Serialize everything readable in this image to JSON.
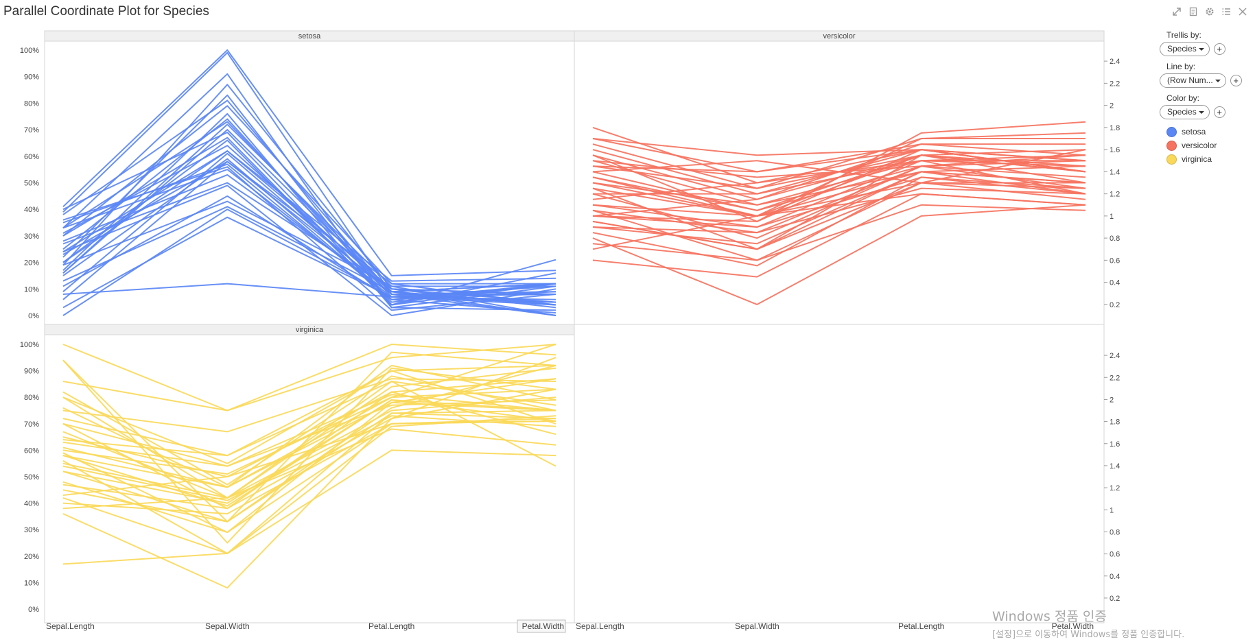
{
  "title": "Parallel Coordinate Plot for Species",
  "toolbar": {
    "icons": [
      "expand-icon",
      "export-icon",
      "settings-icon",
      "list-icon",
      "close-icon"
    ]
  },
  "legend": {
    "trellis_label": "Trellis by:",
    "trellis_value": "Species",
    "line_label": "Line by:",
    "line_value": "(Row Num...",
    "color_label": "Color by:",
    "color_value": "Species",
    "categories": [
      {
        "name": "setosa",
        "color": "#5b87f5"
      },
      {
        "name": "versicolor",
        "color": "#f5735f"
      },
      {
        "name": "virginica",
        "color": "#fad95a"
      }
    ]
  },
  "watermark": {
    "line1": "Windows 정품 인증",
    "line2": "[설정]으로 이동하여 Windows를 정품 인증합니다."
  },
  "chart_data": {
    "type": "line",
    "title": "Parallel Coordinate Plot for Species",
    "axes": [
      "Sepal.Length",
      "Sepal.Width",
      "Petal.Length",
      "Petal.Width"
    ],
    "left_axis": {
      "ticks": [
        "0%",
        "10%",
        "20%",
        "30%",
        "40%",
        "50%",
        "60%",
        "70%",
        "80%",
        "90%",
        "100%"
      ],
      "range": [
        0,
        100
      ]
    },
    "right_axis": {
      "ticks": [
        "0.2",
        "0.4",
        "0.6",
        "0.8",
        "1",
        "1.2",
        "1.4",
        "1.6",
        "1.8",
        "2",
        "2.2",
        "2.4"
      ],
      "range": [
        0.1,
        2.5
      ]
    },
    "panels": [
      {
        "name": "setosa",
        "color": "#5b87f5",
        "lines": [
          [
            8,
            12,
            7,
            8
          ],
          [
            3,
            37,
            7,
            6
          ],
          [
            0,
            40,
            7,
            5
          ],
          [
            13,
            41,
            9,
            4
          ],
          [
            19,
            43,
            11,
            0
          ],
          [
            27,
            50,
            10,
            8
          ],
          [
            35,
            57,
            6,
            1
          ],
          [
            23,
            58,
            9,
            12
          ],
          [
            15,
            59,
            6,
            12
          ],
          [
            9,
            61,
            8,
            8
          ],
          [
            31,
            64,
            9,
            4
          ],
          [
            40,
            69,
            5,
            12
          ],
          [
            16,
            72,
            11,
            11
          ],
          [
            25,
            74,
            7,
            4
          ],
          [
            17,
            76,
            3,
            11
          ],
          [
            30,
            79,
            12,
            4
          ],
          [
            38,
            81,
            8,
            0
          ],
          [
            22,
            83,
            4,
            21
          ],
          [
            19,
            87,
            10,
            3
          ],
          [
            33,
            91,
            3,
            2
          ],
          [
            41,
            100,
            15,
            17
          ],
          [
            24,
            62,
            13,
            14
          ],
          [
            33,
            73,
            9,
            0
          ],
          [
            20,
            66,
            4,
            12
          ],
          [
            28,
            53,
            8,
            9
          ],
          [
            11,
            45,
            6,
            9
          ],
          [
            36,
            56,
            2,
            8
          ],
          [
            20,
            62,
            10,
            5
          ],
          [
            30,
            67,
            4,
            16
          ],
          [
            6,
            58,
            12,
            12
          ],
          [
            39,
            99,
            8,
            5
          ],
          [
            16,
            70,
            9,
            12
          ],
          [
            24,
            49,
            0,
            10
          ],
          [
            33,
            55,
            7,
            11
          ]
        ]
      },
      {
        "name": "versicolor",
        "color": "#f5735f",
        "lines": [
          [
            1.7,
            1.4,
            1.6,
            1.4
          ],
          [
            1.5,
            1.1,
            1.4,
            1.2
          ],
          [
            1.4,
            1.5,
            1.3,
            1.6
          ],
          [
            1.2,
            1.2,
            1.5,
            1.5
          ],
          [
            0.7,
            1.0,
            1.3,
            1.3
          ],
          [
            0.6,
            0.45,
            1.2,
            1.1
          ],
          [
            1.05,
            0.85,
            1.45,
            1.5
          ],
          [
            1.35,
            1.0,
            1.55,
            1.3
          ],
          [
            0.9,
            0.75,
            1.4,
            1.45
          ],
          [
            1.0,
            0.9,
            1.35,
            1.2
          ],
          [
            1.6,
            1.2,
            1.6,
            1.5
          ],
          [
            1.25,
            1.0,
            1.7,
            1.7
          ],
          [
            1.1,
            1.0,
            1.4,
            1.3
          ],
          [
            0.95,
            0.7,
            1.3,
            1.25
          ],
          [
            1.8,
            1.3,
            1.5,
            1.55
          ],
          [
            1.55,
            0.95,
            1.6,
            1.4
          ],
          [
            0.8,
            0.2,
            1.0,
            1.1
          ],
          [
            1.3,
            1.1,
            1.5,
            1.2
          ],
          [
            1.15,
            1.3,
            1.6,
            1.4
          ],
          [
            0.85,
            0.55,
            1.35,
            1.25
          ],
          [
            1.45,
            1.4,
            1.65,
            1.55
          ],
          [
            1.65,
            1.25,
            1.55,
            1.4
          ],
          [
            1.05,
            0.6,
            1.3,
            1.15
          ],
          [
            1.4,
            1.05,
            1.55,
            1.4
          ],
          [
            1.2,
            0.8,
            1.45,
            1.55
          ],
          [
            0.75,
            0.6,
            1.1,
            1.05
          ],
          [
            1.5,
            1.35,
            1.45,
            1.25
          ],
          [
            1.0,
            0.95,
            1.75,
            1.85
          ],
          [
            0.95,
            0.7,
            1.55,
            1.6
          ],
          [
            1.7,
            1.55,
            1.6,
            1.5
          ],
          [
            1.3,
            1.0,
            1.2,
            1.1
          ],
          [
            1.1,
            0.9,
            1.5,
            1.45
          ],
          [
            1.55,
            1.15,
            1.65,
            1.65
          ],
          [
            0.9,
            0.85,
            1.25,
            1.2
          ],
          [
            1.35,
            1.05,
            1.45,
            1.35
          ],
          [
            1.25,
            0.7,
            1.4,
            1.3
          ],
          [
            1.0,
            1.15,
            1.55,
            1.45
          ],
          [
            1.45,
            1.25,
            1.7,
            1.75
          ]
        ]
      },
      {
        "name": "virginica",
        "color": "#fad95a",
        "lines": [
          [
            94,
            33,
            97,
            92
          ],
          [
            17,
            21,
            60,
            58
          ],
          [
            55,
            42,
            75,
            80
          ],
          [
            65,
            50,
            82,
            87
          ],
          [
            72,
            58,
            90,
            92
          ],
          [
            40,
            36,
            70,
            72
          ],
          [
            58,
            46,
            78,
            75
          ],
          [
            86,
            75,
            100,
            96
          ],
          [
            100,
            75,
            95,
            100
          ],
          [
            36,
            8,
            72,
            83
          ],
          [
            60,
            51,
            80,
            100
          ],
          [
            80,
            42,
            86,
            77
          ],
          [
            48,
            29,
            70,
            71
          ],
          [
            45,
            33,
            74,
            75
          ],
          [
            70,
            38,
            82,
            66
          ],
          [
            94,
            25,
            91,
            83
          ],
          [
            52,
            40,
            79,
            71
          ],
          [
            63,
            54,
            77,
            79
          ],
          [
            56,
            21,
            74,
            72
          ],
          [
            43,
            50,
            70,
            71
          ],
          [
            75,
            67,
            87,
            86
          ],
          [
            38,
            42,
            68,
            62
          ],
          [
            52,
            33,
            76,
            92
          ],
          [
            61,
            46,
            80,
            83
          ],
          [
            82,
            47,
            88,
            75
          ],
          [
            67,
            42,
            84,
            91
          ],
          [
            58,
            39,
            79,
            75
          ],
          [
            42,
            21,
            69,
            73
          ],
          [
            64,
            58,
            86,
            54
          ],
          [
            76,
            46,
            92,
            79
          ],
          [
            54,
            41,
            73,
            69
          ],
          [
            47,
            38,
            72,
            95
          ],
          [
            70,
            54,
            81,
            75
          ],
          [
            59,
            29,
            78,
            87
          ],
          [
            80,
            55,
            90,
            70
          ]
        ]
      }
    ]
  }
}
